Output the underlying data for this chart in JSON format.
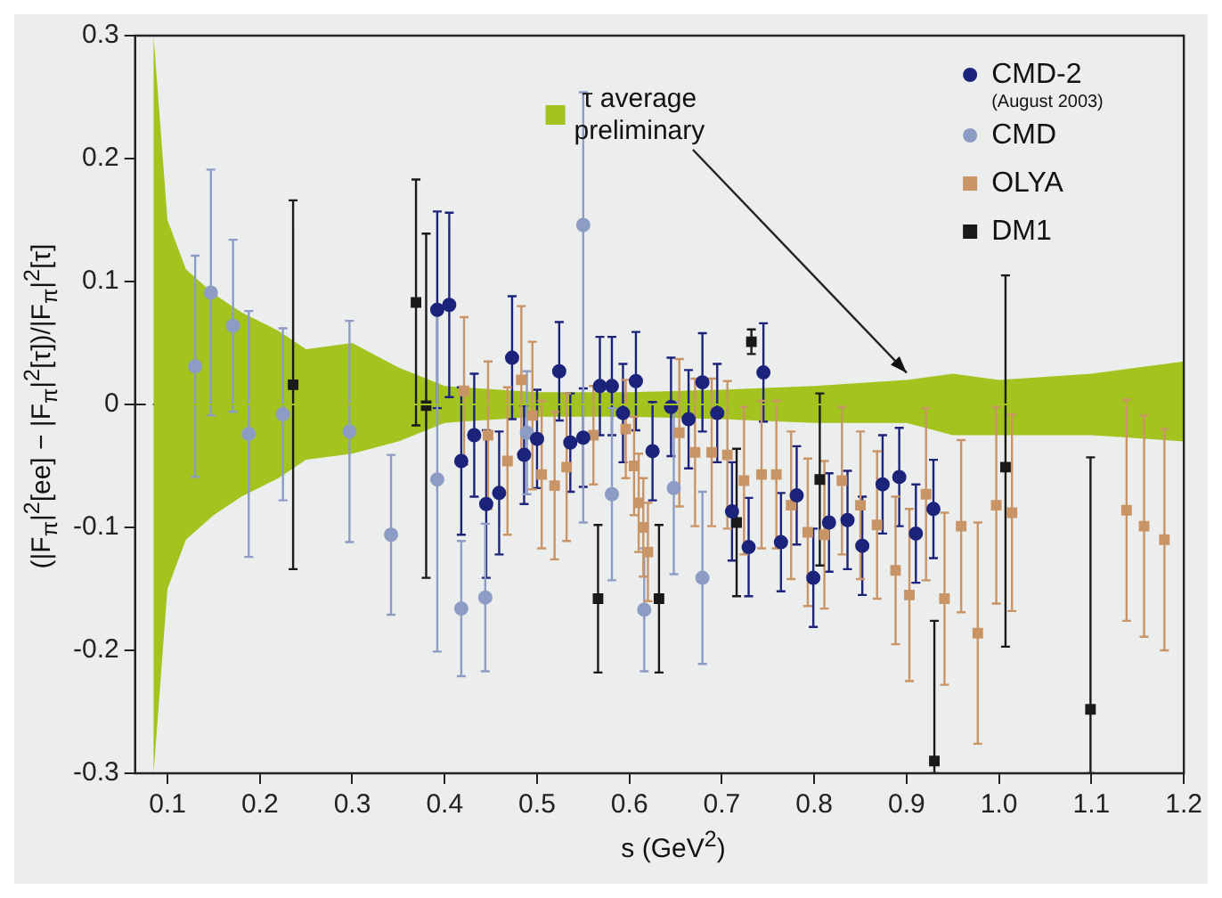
{
  "chart_data": {
    "type": "scatter",
    "xlabel": "s (GeV$^{2}$)",
    "ylabel": "(|F$_{π}$|$^{2}$[ee] − |F$_{π}$|$^{2}$[τ])/|F$_{π}$|$^{2}$[τ]",
    "xlim": [
      0.065,
      1.2
    ],
    "xticks": [
      0.1,
      0.2,
      0.3,
      0.4,
      0.5,
      0.6,
      0.7,
      0.8,
      0.9,
      {
        "value": 1,
        "label": "1.0"
      },
      1.1,
      1.2
    ],
    "ylim": [
      -0.3,
      0.3
    ],
    "yticks": [
      -0.3,
      -0.2,
      -0.1,
      0,
      0.1,
      0.2,
      0.3
    ],
    "grid": false,
    "legend": "top right",
    "ref_lines": [
      {
        "axis": "y",
        "value": 0,
        "color": "#222222",
        "line_style": "dashed"
      }
    ],
    "series": [
      {
        "type": "line",
        "name": "τ average preliminary",
        "color": "#a3c41e",
        "x": [
          0.085,
          0.1,
          0.12,
          0.15,
          0.18,
          0.22,
          0.25,
          0.3,
          0.35,
          0.4,
          0.5,
          0.6,
          0.7,
          0.8,
          0.9,
          0.95,
          1.0,
          1.1,
          1.2
        ],
        "values": [
          0,
          0,
          0,
          0,
          0,
          0,
          0,
          0,
          0,
          0,
          0,
          0,
          0,
          0,
          0,
          0,
          0,
          0,
          0
        ],
        "upper": [
          0.3,
          0.15,
          0.11,
          0.09,
          0.075,
          0.06,
          0.045,
          0.05,
          0.03,
          0.015,
          0.01,
          0.01,
          0.012,
          0.015,
          0.02,
          0.025,
          0.02,
          0.025,
          0.035
        ],
        "lower": [
          -0.3,
          -0.15,
          -0.11,
          -0.09,
          -0.075,
          -0.06,
          -0.045,
          -0.04,
          -0.03,
          -0.015,
          -0.01,
          -0.01,
          -0.012,
          -0.015,
          -0.015,
          -0.025,
          -0.025,
          -0.025,
          -0.03
        ]
      },
      {
        "type": "scatter",
        "name": "CMD-2 (August 2003)",
        "color": "#1b237a",
        "marker": "circle",
        "x": [
          0.392,
          0.405,
          0.418,
          0.432,
          0.445,
          0.459,
          0.473,
          0.486,
          0.5,
          0.524,
          0.536,
          0.55,
          0.568,
          0.581,
          0.593,
          0.607,
          0.625,
          0.645,
          0.664,
          0.679,
          0.695,
          0.711,
          0.729,
          0.745,
          0.764,
          0.781,
          0.799,
          0.816,
          0.836,
          0.852,
          0.874,
          0.892,
          0.91,
          0.929
        ],
        "values": [
          0.077,
          0.081,
          -0.046,
          -0.025,
          -0.081,
          -0.072,
          0.038,
          -0.041,
          -0.028,
          0.027,
          -0.031,
          -0.027,
          0.015,
          0.015,
          -0.007,
          0.019,
          -0.038,
          -0.002,
          -0.012,
          0.018,
          -0.007,
          -0.087,
          -0.116,
          0.026,
          -0.112,
          -0.074,
          -0.141,
          -0.096,
          -0.094,
          -0.115,
          -0.065,
          -0.059,
          -0.105,
          -0.085
        ],
        "errors": [
          0.08,
          0.075,
          0.06,
          0.05,
          0.06,
          0.05,
          0.05,
          0.04,
          0.04,
          0.04,
          0.04,
          0.04,
          0.04,
          0.04,
          0.04,
          0.04,
          0.04,
          0.04,
          0.04,
          0.04,
          0.04,
          0.04,
          0.04,
          0.04,
          0.04,
          0.04,
          0.04,
          0.04,
          0.04,
          0.04,
          0.04,
          0.04,
          0.04,
          0.04
        ]
      },
      {
        "type": "scatter",
        "name": "CMD",
        "color": "#8c9cc4",
        "marker": "circle",
        "x": [
          0.13,
          0.147,
          0.171,
          0.188,
          0.225,
          0.297,
          0.342,
          0.392,
          0.418,
          0.444,
          0.489,
          0.55,
          0.581,
          0.616,
          0.648,
          0.679
        ],
        "values": [
          0.031,
          0.091,
          0.064,
          -0.024,
          -0.008,
          -0.022,
          -0.106,
          -0.061,
          -0.166,
          -0.157,
          -0.023,
          0.146,
          -0.073,
          -0.167,
          -0.068,
          -0.141
        ],
        "errors": [
          0.09,
          0.1,
          0.07,
          0.1,
          0.07,
          0.09,
          0.065,
          0.14,
          0.055,
          0.06,
          0.05,
          [
            -0.096,
            0.254
          ],
          0.07,
          0.05,
          0.07,
          0.07
        ]
      },
      {
        "type": "scatter",
        "name": "OLYA",
        "color": "#c99466",
        "marker": "square",
        "x": [
          0.421,
          0.447,
          0.468,
          0.483,
          0.495,
          0.505,
          0.519,
          0.532,
          0.561,
          0.596,
          0.605,
          0.61,
          0.615,
          0.62,
          0.654,
          0.671,
          0.689,
          0.706,
          0.724,
          0.743,
          0.759,
          0.775,
          0.793,
          0.811,
          0.83,
          0.85,
          0.868,
          0.888,
          0.903,
          0.921,
          0.941,
          0.959,
          0.977,
          0.997,
          1.014,
          1.138,
          1.157,
          1.179
        ],
        "values": [
          0.011,
          -0.025,
          -0.046,
          0.02,
          -0.009,
          -0.057,
          -0.066,
          -0.051,
          -0.025,
          -0.02,
          -0.05,
          -0.08,
          -0.1,
          -0.12,
          -0.023,
          -0.039,
          -0.039,
          -0.041,
          -0.062,
          -0.057,
          -0.057,
          -0.082,
          -0.104,
          -0.106,
          -0.062,
          -0.082,
          -0.098,
          -0.135,
          -0.155,
          -0.073,
          -0.158,
          -0.099,
          -0.186,
          -0.082,
          -0.088,
          -0.086,
          -0.099,
          -0.11
        ],
        "errors": [
          0.06,
          0.06,
          0.06,
          0.06,
          0.06,
          0.06,
          0.06,
          0.06,
          0.04,
          0.04,
          0.04,
          0.04,
          0.04,
          0.04,
          0.06,
          0.06,
          0.06,
          0.06,
          0.06,
          0.06,
          0.06,
          0.06,
          0.06,
          0.06,
          0.06,
          0.06,
          0.06,
          0.06,
          0.07,
          0.07,
          0.07,
          0.07,
          0.09,
          0.08,
          0.08,
          0.09,
          0.09,
          0.09
        ]
      },
      {
        "type": "scatter",
        "name": "DM1",
        "color": "#1a1a1a",
        "marker": "square",
        "x": [
          0.236,
          0.369,
          0.38,
          0.566,
          0.632,
          0.716,
          0.732,
          0.806,
          0.93,
          1.007,
          1.099
        ],
        "values": [
          0.016,
          0.083,
          -0.001,
          -0.158,
          -0.158,
          -0.096,
          0.051,
          -0.061,
          -0.29,
          -0.051,
          -0.248
        ],
        "errors": [
          0.15,
          0.1,
          0.14,
          0.06,
          0.06,
          0.06,
          0.01,
          0.07,
          [
            -0.3,
            -0.176
          ],
          [
            -0.197,
            0.105
          ],
          [
            -0.3,
            -0.043
          ]
        ]
      }
    ]
  }
}
